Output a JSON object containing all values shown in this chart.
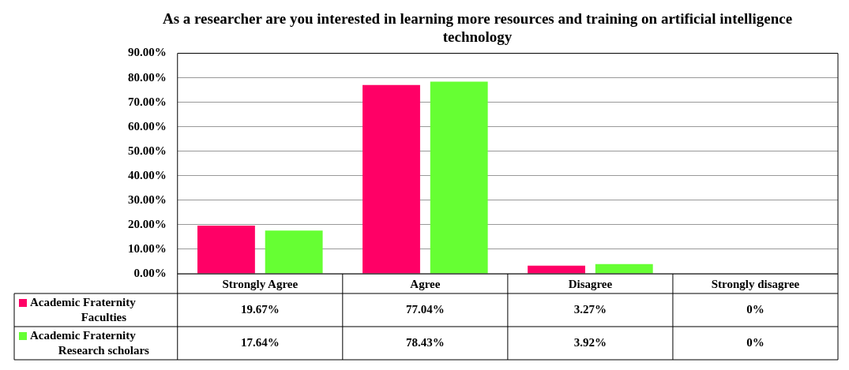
{
  "chart_data": {
    "type": "bar",
    "title": "As a researcher are you interested in learning more resources and training on artificial intelligence technology",
    "categories": [
      "Strongly Agree",
      "Agree",
      "Disagree",
      "Strongly disagree"
    ],
    "series": [
      {
        "name": "Academic Fraternity Faculties",
        "color": "#ff0066",
        "values": [
          19.67,
          77.04,
          3.27,
          0
        ],
        "value_labels": [
          "19.67%",
          "77.04%",
          "3.27%",
          "0%"
        ]
      },
      {
        "name": "Academic Fraternity Research scholars",
        "color": "#66ff33",
        "values": [
          17.64,
          78.43,
          3.92,
          0
        ],
        "value_labels": [
          "17.64%",
          "78.43%",
          "3.92%",
          "0%"
        ]
      }
    ],
    "ylim": [
      0,
      90
    ],
    "yticks": [
      {
        "value": 0,
        "label": "0.00%"
      },
      {
        "value": 10,
        "label": "10.00%"
      },
      {
        "value": 20,
        "label": "20.00%"
      },
      {
        "value": 30,
        "label": "30.00%"
      },
      {
        "value": 40,
        "label": "40.00%"
      },
      {
        "value": 50,
        "label": "50.00%"
      },
      {
        "value": 60,
        "label": "60.00%"
      },
      {
        "value": 70,
        "label": "70.00%"
      },
      {
        "value": 80,
        "label": "80.00%"
      },
      {
        "value": 90,
        "label": "90.00%"
      }
    ],
    "grid": "y",
    "legend": "bottom"
  }
}
